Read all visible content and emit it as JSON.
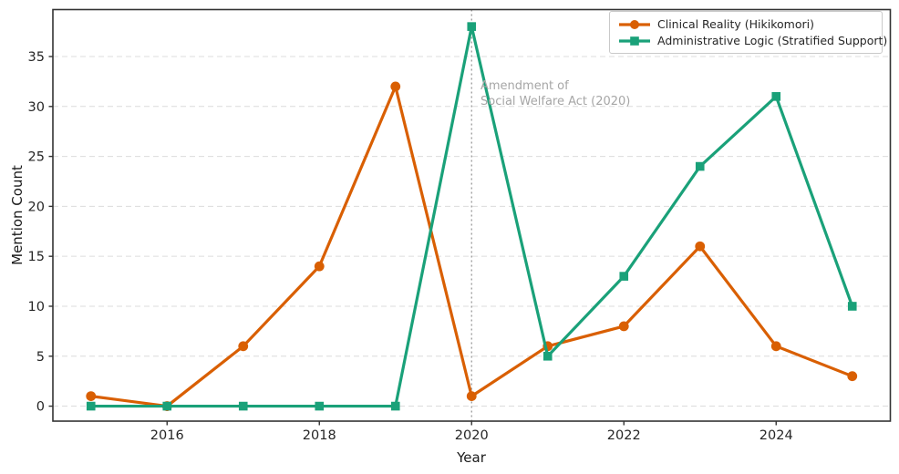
{
  "chart_data": {
    "type": "line",
    "title": "",
    "xlabel": "Year",
    "ylabel": "Mention Count",
    "x": [
      2015,
      2016,
      2017,
      2018,
      2019,
      2020,
      2021,
      2022,
      2023,
      2024,
      2025
    ],
    "series": [
      {
        "name": "Clinical Reality (Hikikomori)",
        "color": "#D95F02",
        "marker": "circle",
        "values": [
          1,
          0,
          6,
          14,
          32,
          1,
          6,
          8,
          16,
          6,
          3
        ]
      },
      {
        "name": "Administrative Logic (Stratified Support)",
        "color": "#1AA179",
        "marker": "square",
        "values": [
          0,
          0,
          0,
          0,
          0,
          38,
          5,
          13,
          24,
          31,
          10
        ]
      }
    ],
    "xticks": [
      2016,
      2018,
      2020,
      2022,
      2024
    ],
    "yticks": [
      0,
      5,
      10,
      15,
      20,
      25,
      30,
      35
    ],
    "xlim": [
      2014.5,
      2025.5
    ],
    "ylim": [
      -1.5,
      39.7
    ],
    "grid": "horizontal-dashed",
    "legend_position": "top-right",
    "vline": {
      "x": 2020,
      "style": "dotted",
      "color": "#999999"
    },
    "annotation": {
      "x": 2020,
      "text_lines": [
        "Amendment of",
        "Social Welfare Act (2020)"
      ],
      "color": "#a6a6a6"
    },
    "colors": {
      "grid": "#dcdcdc",
      "spine": "#333333",
      "tick_text": "#262626",
      "legend_border": "#c9c9c9"
    }
  }
}
